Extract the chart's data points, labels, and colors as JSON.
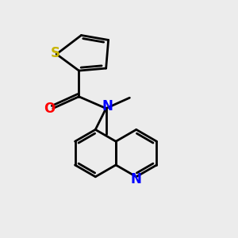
{
  "bg_color": "#ececec",
  "bond_color": "#000000",
  "S_color": "#c8b400",
  "O_color": "#ff0000",
  "N_color": "#0000ff",
  "line_width": 2.0,
  "font_size": 12,
  "xlim": [
    0,
    10
  ],
  "ylim": [
    0,
    10
  ]
}
